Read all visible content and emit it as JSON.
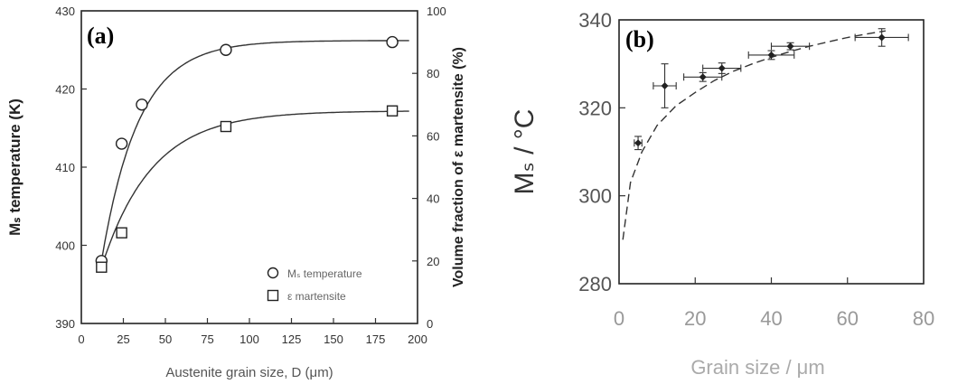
{
  "chart_data": [
    {
      "type": "line",
      "panel_label": "(a)",
      "xlabel": "Austenite grain size, D (μm)",
      "ylabel": "Mₛ temperature (K)",
      "y2label": "Volume fraction of ε martensite (%)",
      "xlim": [
        0,
        200
      ],
      "ylim": [
        390,
        430
      ],
      "y2lim": [
        0,
        100
      ],
      "x_ticks": [
        "0",
        "25",
        "50",
        "75",
        "100",
        "125",
        "150",
        "175",
        "200"
      ],
      "y_ticks": [
        "390",
        "400",
        "410",
        "420",
        "430"
      ],
      "y2_ticks": [
        "0",
        "20",
        "40",
        "60",
        "80",
        "100"
      ],
      "legend_position": "bottom-right",
      "series": [
        {
          "name": "Mₛ temperature",
          "marker": "circle",
          "axis": "left",
          "x": [
            12,
            24,
            36,
            86,
            185
          ],
          "y": [
            398,
            413,
            418,
            425,
            426
          ]
        },
        {
          "name": "ε martensite",
          "marker": "square",
          "axis": "right",
          "x": [
            12,
            24,
            86,
            185
          ],
          "y": [
            18,
            29,
            63,
            68
          ]
        }
      ]
    },
    {
      "type": "scatter",
      "panel_label": "(b)",
      "xlabel": "Grain size / μm",
      "ylabel": "Mₛ / °C",
      "xlim": [
        0,
        80
      ],
      "ylim": [
        280,
        340
      ],
      "x_ticks": [
        "0",
        "20",
        "40",
        "60",
        "80"
      ],
      "y_ticks": [
        "280",
        "300",
        "320",
        "340"
      ],
      "series": [
        {
          "marker": "diamond",
          "x": [
            5,
            12,
            22,
            27,
            40,
            45,
            69
          ],
          "y": [
            312,
            325,
            327,
            329,
            332,
            334,
            336
          ]
        }
      ],
      "fit": {
        "x": [
          1,
          3,
          6,
          10,
          15,
          20,
          25,
          30,
          35,
          40,
          45,
          50,
          55,
          60,
          65,
          70
        ],
        "y": [
          290,
          303,
          310,
          316,
          320.5,
          323.5,
          326.2,
          328.3,
          330,
          331.5,
          332.8,
          334,
          335,
          336,
          336.8,
          337.5
        ]
      }
    }
  ]
}
